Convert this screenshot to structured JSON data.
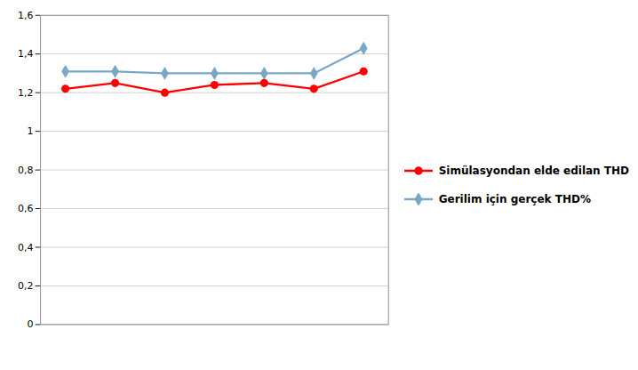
{
  "chart_data": {
    "type": "line",
    "x": [
      1,
      2,
      3,
      4,
      5,
      6,
      7
    ],
    "xlim": [
      0.5,
      7.5
    ],
    "ylim": [
      0,
      1.6
    ],
    "yticks": [
      0,
      {
        "value": 0.2,
        "label": "0,2"
      },
      {
        "value": 0.4,
        "label": "0,4"
      },
      {
        "value": 0.6,
        "label": "0,6"
      },
      {
        "value": 0.8,
        "label": "0,8"
      },
      1,
      {
        "value": 1.2,
        "label": "1,2"
      },
      {
        "value": 1.4,
        "label": "1,4"
      },
      {
        "value": 1.6,
        "label": "1,6"
      }
    ],
    "grid": true,
    "legend": "right",
    "tick_labels": "y",
    "series": [
      {
        "name": "Simülasyondan elde edilan THD",
        "color": "#FF0000",
        "marker": "circle",
        "values": [
          1.22,
          1.25,
          1.2,
          1.24,
          1.25,
          1.22,
          1.31
        ]
      },
      {
        "name": "Gerilim için gerçek THD%",
        "color": "#7BA7C7",
        "marker": "diamond",
        "values": [
          1.31,
          1.31,
          1.3,
          1.3,
          1.3,
          1.3,
          1.43
        ]
      }
    ]
  }
}
